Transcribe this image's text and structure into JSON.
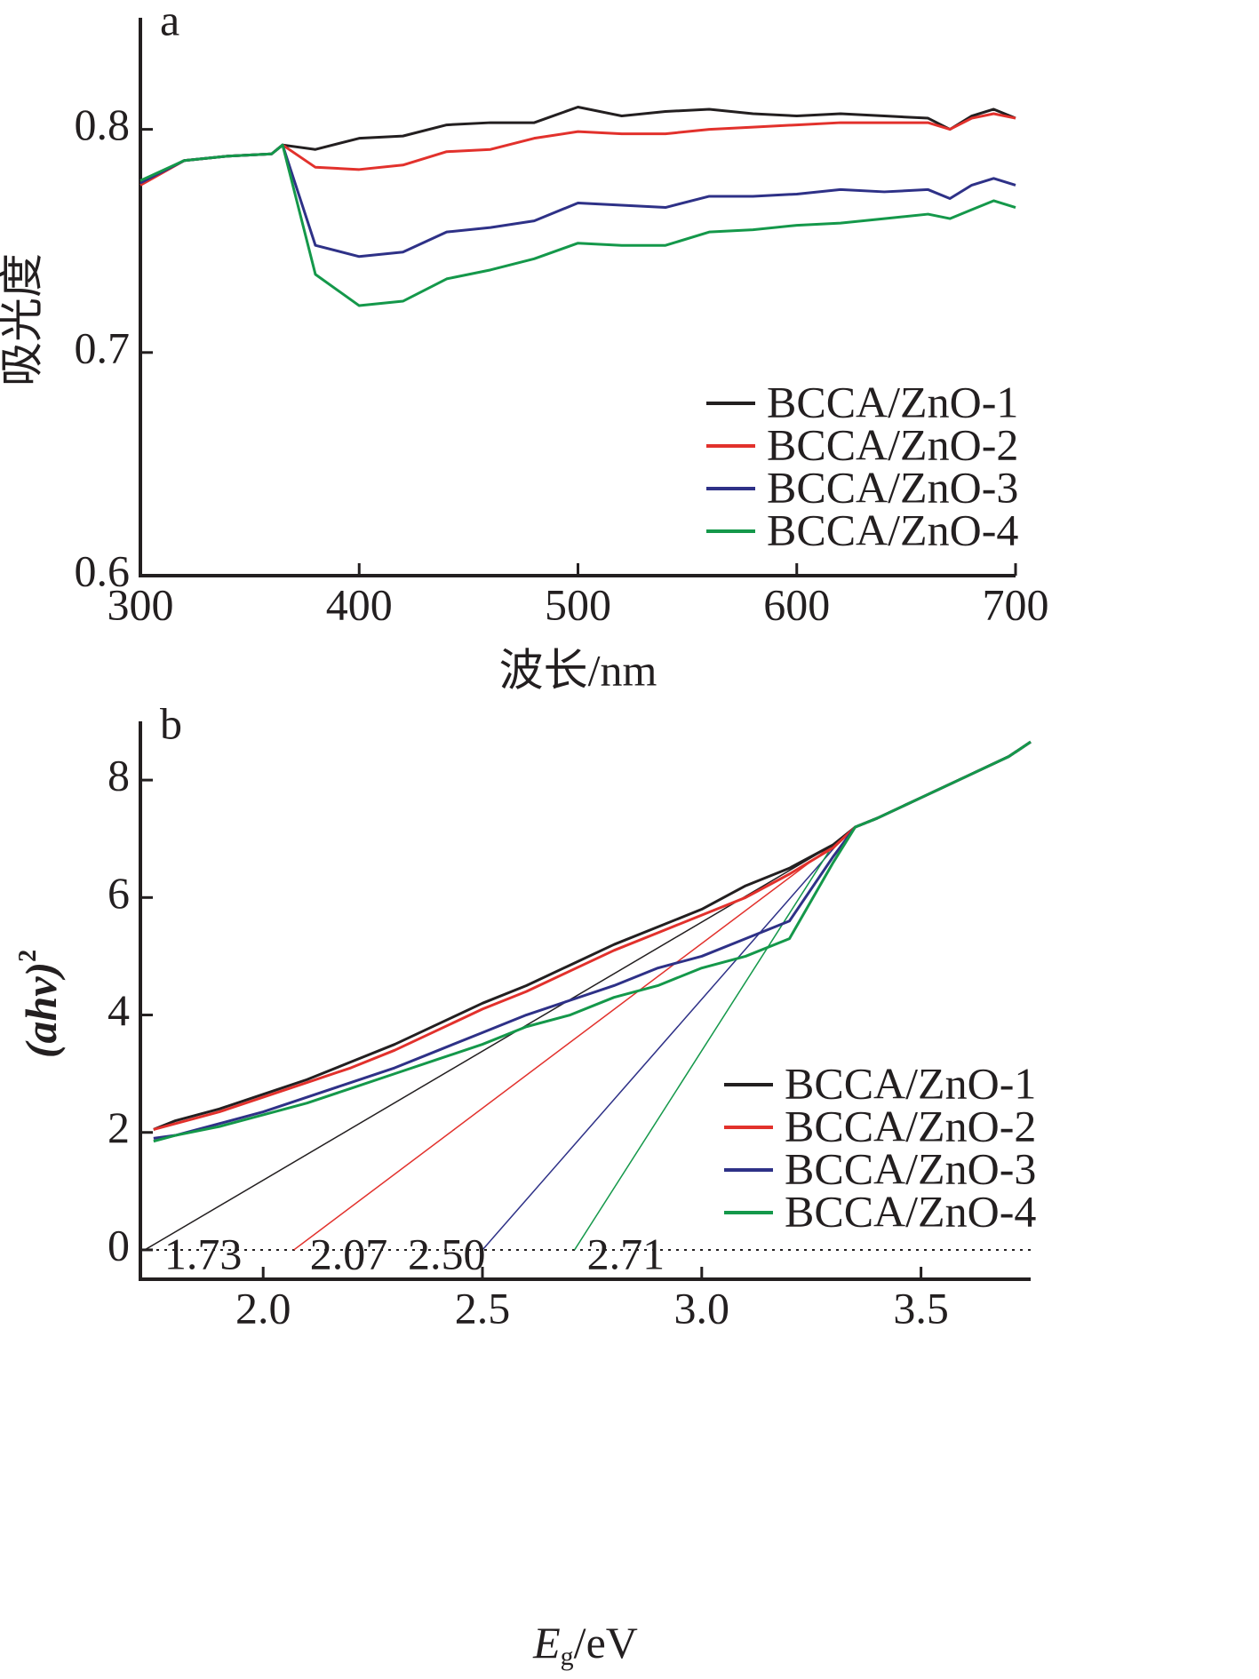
{
  "chart_data": [
    {
      "type": "line",
      "panel_label": "a",
      "y_label": "吸光度",
      "x_label": "波长/nm",
      "x": [
        300,
        320,
        340,
        360,
        365,
        380,
        400,
        420,
        440,
        460,
        480,
        500,
        520,
        540,
        560,
        580,
        600,
        620,
        640,
        660,
        670,
        680,
        690,
        700
      ],
      "series": [
        {
          "name": "BCCA/ZnO-1",
          "color": "#231f20",
          "values": [
            0.776,
            0.786,
            0.788,
            0.789,
            0.793,
            0.791,
            0.796,
            0.797,
            0.802,
            0.803,
            0.803,
            0.81,
            0.806,
            0.808,
            0.809,
            0.807,
            0.806,
            0.807,
            0.806,
            0.805,
            0.8,
            0.806,
            0.809,
            0.805
          ]
        },
        {
          "name": "BCCA/ZnO-2",
          "color": "#e2312c",
          "values": [
            0.775,
            0.786,
            0.788,
            0.789,
            0.793,
            0.783,
            0.782,
            0.784,
            0.79,
            0.791,
            0.796,
            0.799,
            0.798,
            0.798,
            0.8,
            0.801,
            0.802,
            0.803,
            0.803,
            0.803,
            0.8,
            0.805,
            0.807,
            0.805
          ]
        },
        {
          "name": "BCCA/ZnO-3",
          "color": "#2e3187",
          "values": [
            0.776,
            0.786,
            0.788,
            0.789,
            0.793,
            0.748,
            0.743,
            0.745,
            0.754,
            0.756,
            0.759,
            0.767,
            0.766,
            0.765,
            0.77,
            0.77,
            0.771,
            0.773,
            0.772,
            0.773,
            0.769,
            0.775,
            0.778,
            0.775
          ]
        },
        {
          "name": "BCCA/ZnO-4",
          "color": "#14984a",
          "values": [
            0.777,
            0.786,
            0.788,
            0.789,
            0.793,
            0.735,
            0.721,
            0.723,
            0.733,
            0.737,
            0.742,
            0.749,
            0.748,
            0.748,
            0.754,
            0.755,
            0.757,
            0.758,
            0.76,
            0.762,
            0.76,
            0.764,
            0.768,
            0.765
          ]
        }
      ],
      "xlim": [
        300,
        700
      ],
      "xticks": [
        300,
        400,
        500,
        600,
        700
      ],
      "ylim": [
        0.6,
        0.85
      ],
      "yticks": [
        0.6,
        0.7,
        0.8
      ],
      "legend": "lower right"
    },
    {
      "type": "line",
      "panel_label": "b",
      "y_label": {
        "main": "(ahv)",
        "sup": "2"
      },
      "x_label": {
        "main": "E",
        "sub": "g",
        "rest": "/eV"
      },
      "x": [
        1.75,
        1.8,
        1.9,
        2.0,
        2.1,
        2.2,
        2.3,
        2.4,
        2.5,
        2.6,
        2.7,
        2.8,
        2.9,
        3.0,
        3.1,
        3.2,
        3.3,
        3.35,
        3.4,
        3.5,
        3.6,
        3.7,
        3.75
      ],
      "series": [
        {
          "name": "BCCA/ZnO-1",
          "color": "#231f20",
          "values": [
            2.05,
            2.2,
            2.4,
            2.65,
            2.9,
            3.2,
            3.5,
            3.85,
            4.2,
            4.5,
            4.85,
            5.2,
            5.5,
            5.8,
            6.2,
            6.5,
            6.9,
            7.2,
            7.35,
            7.7,
            8.05,
            8.4,
            8.65
          ]
        },
        {
          "name": "BCCA/ZnO-2",
          "color": "#e2312c",
          "values": [
            2.05,
            2.15,
            2.35,
            2.6,
            2.85,
            3.1,
            3.4,
            3.75,
            4.1,
            4.4,
            4.75,
            5.1,
            5.4,
            5.7,
            6.0,
            6.4,
            6.85,
            7.2,
            7.35,
            7.7,
            8.05,
            8.4,
            8.65
          ]
        },
        {
          "name": "BCCA/ZnO-3",
          "color": "#2e3187",
          "values": [
            1.9,
            1.95,
            2.15,
            2.35,
            2.6,
            2.85,
            3.1,
            3.4,
            3.7,
            4.0,
            4.25,
            4.5,
            4.8,
            5.0,
            5.3,
            5.6,
            6.7,
            7.2,
            7.35,
            7.7,
            8.05,
            8.4,
            8.65
          ]
        },
        {
          "name": "BCCA/ZnO-4",
          "color": "#14984a",
          "values": [
            1.85,
            1.95,
            2.1,
            2.3,
            2.5,
            2.75,
            3.0,
            3.25,
            3.5,
            3.8,
            4.0,
            4.3,
            4.5,
            4.8,
            5.0,
            5.3,
            6.6,
            7.2,
            7.35,
            7.7,
            8.05,
            8.4,
            8.65
          ]
        }
      ],
      "fit_lines": [
        {
          "label": "1.73",
          "color": "#231f20",
          "x": [
            1.73,
            3.3
          ],
          "values": [
            0,
            6.9
          ]
        },
        {
          "label": "2.07",
          "color": "#e2312c",
          "x": [
            2.07,
            3.3
          ],
          "values": [
            0,
            6.9
          ]
        },
        {
          "label": "2.50",
          "color": "#2e3187",
          "x": [
            2.5,
            3.32
          ],
          "values": [
            0,
            7.0
          ]
        },
        {
          "label": "2.71",
          "color": "#14984a",
          "x": [
            2.71,
            3.3
          ],
          "values": [
            0,
            6.9
          ]
        }
      ],
      "hline": 0,
      "xlim": [
        1.72,
        3.75
      ],
      "xticks": [
        {
          "value": 2,
          "label": "2.0"
        },
        {
          "value": 2.5,
          "label": "2.5"
        },
        {
          "value": 3,
          "label": "3.0"
        },
        {
          "value": 3.5,
          "label": "3.5"
        }
      ],
      "ylim": [
        -0.5,
        9
      ],
      "yticks": [
        0,
        2,
        4,
        6,
        8
      ],
      "legend": "lower right"
    }
  ]
}
